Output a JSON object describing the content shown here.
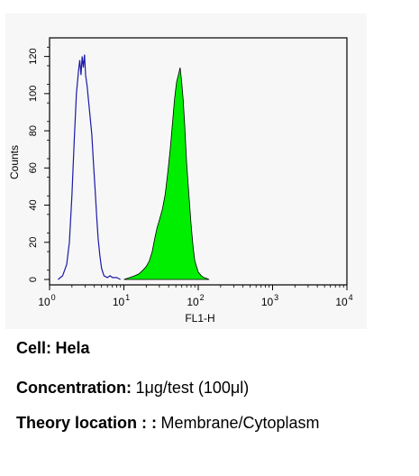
{
  "chart_data": {
    "type": "area",
    "x_scale": "log",
    "x_ticks": [
      1,
      10,
      100,
      1000,
      10000
    ],
    "x_tick_labels": [
      {
        "base": "10",
        "exp": "0"
      },
      {
        "base": "10",
        "exp": "1"
      },
      {
        "base": "10",
        "exp": "2"
      },
      {
        "base": "10",
        "exp": "3"
      },
      {
        "base": "10",
        "exp": "4"
      }
    ],
    "y_ticks": [
      0,
      20,
      40,
      60,
      80,
      100,
      120
    ],
    "xlim": [
      1,
      10000
    ],
    "ylim": [
      0,
      130
    ],
    "xlabel": "FL1-H",
    "ylabel": "Counts",
    "grid": false,
    "series": [
      {
        "style": "outline",
        "color": "#1a1aa6",
        "x": [
          1.3,
          1.5,
          1.7,
          1.85,
          2.0,
          2.15,
          2.3,
          2.45,
          2.55,
          2.65,
          2.75,
          2.85,
          2.95,
          3.05,
          3.2,
          3.35,
          3.5,
          3.7,
          3.9,
          4.1,
          4.3,
          4.5,
          4.75,
          5.0,
          5.4,
          6.0,
          6.5,
          7.0,
          8.0,
          9.0
        ],
        "y": [
          0,
          2,
          8,
          20,
          45,
          75,
          100,
          112,
          118,
          110,
          120,
          114,
          121,
          110,
          104,
          96,
          88,
          78,
          62,
          48,
          34,
          22,
          13,
          6,
          2,
          1,
          2,
          1,
          1,
          0
        ]
      },
      {
        "style": "filled",
        "color": "#00ee00",
        "x": [
          10,
          12,
          14,
          16,
          18,
          20,
          22,
          24,
          26,
          28,
          30,
          33,
          36,
          39,
          42,
          45,
          48,
          51,
          54,
          57,
          60,
          63,
          66,
          70,
          75,
          80,
          85,
          90,
          100,
          110,
          120,
          140
        ],
        "y": [
          0,
          1,
          2,
          3,
          5,
          7,
          10,
          15,
          22,
          28,
          32,
          38,
          46,
          58,
          70,
          84,
          97,
          106,
          110,
          114,
          106,
          96,
          82,
          62,
          45,
          30,
          18,
          10,
          4,
          2,
          1,
          0
        ]
      }
    ]
  },
  "info": {
    "cell_label": "Cell:",
    "cell_value": "Hela",
    "concentration_label": "Concentration:",
    "concentration_value": "1μg/test (100μl)",
    "location_label": "Theory location : :",
    "location_value": "Membrane/Cytoplasm"
  }
}
